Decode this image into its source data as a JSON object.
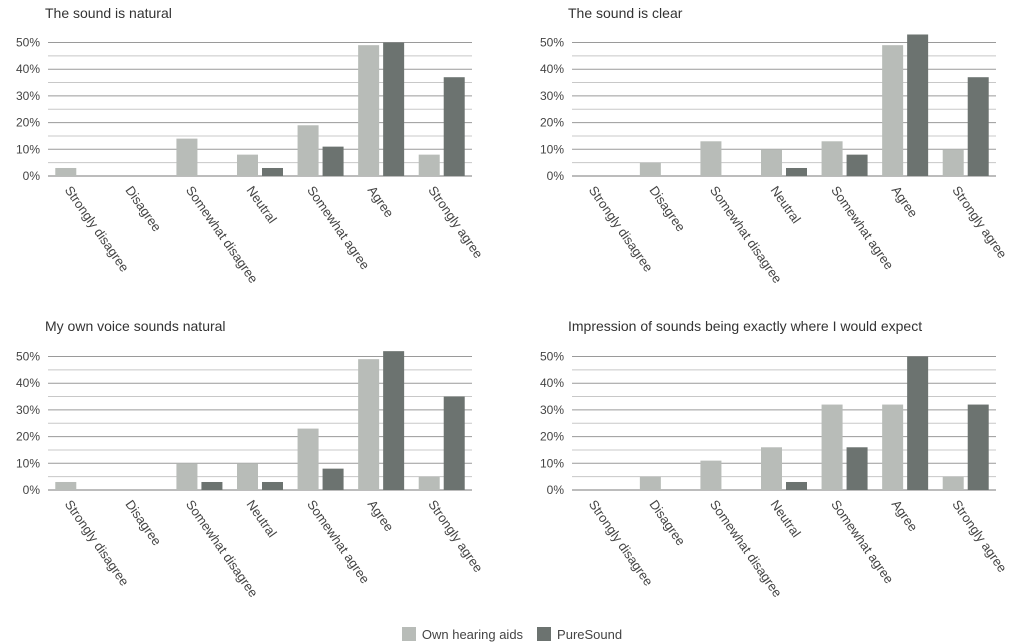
{
  "chart_data": [
    {
      "type": "bar",
      "title": "The sound is natural",
      "categories": [
        "Strongly disagree",
        "Disagree",
        "Somewhat disagree",
        "Neutral",
        "Somewhat agree",
        "Agree",
        "Strongly agree"
      ],
      "series": [
        {
          "name": "Own hearing aids",
          "values": [
            3,
            0,
            14,
            8,
            19,
            49,
            8
          ]
        },
        {
          "name": "PureSound",
          "values": [
            0,
            0,
            0,
            3,
            11,
            50,
            37
          ]
        }
      ],
      "yticks": [
        "0%",
        "10%",
        "20%",
        "30%",
        "40%",
        "50%"
      ],
      "ylim": [
        0,
        55
      ]
    },
    {
      "type": "bar",
      "title": "The sound is clear",
      "categories": [
        "Strongly disagree",
        "Disagree",
        "Somewhat disagree",
        "Neutral",
        "Somewhat agree",
        "Agree",
        "Strongly agree"
      ],
      "series": [
        {
          "name": "Own hearing aids",
          "values": [
            0,
            5,
            13,
            10,
            13,
            49,
            10
          ]
        },
        {
          "name": "PureSound",
          "values": [
            0,
            0,
            0,
            3,
            8,
            53,
            37
          ]
        }
      ],
      "yticks": [
        "0%",
        "10%",
        "20%",
        "30%",
        "40%",
        "50%"
      ],
      "ylim": [
        0,
        55
      ]
    },
    {
      "type": "bar",
      "title": "My own voice sounds natural",
      "categories": [
        "Strongly disagree",
        "Disagree",
        "Somewhat disagree",
        "Neutral",
        "Somewhat agree",
        "Agree",
        "Strongly agree"
      ],
      "series": [
        {
          "name": "Own hearing aids",
          "values": [
            3,
            0,
            10,
            10,
            23,
            49,
            5
          ]
        },
        {
          "name": "PureSound",
          "values": [
            0,
            0,
            3,
            3,
            8,
            52,
            35
          ]
        }
      ],
      "yticks": [
        "0%",
        "10%",
        "20%",
        "30%",
        "40%",
        "50%"
      ],
      "ylim": [
        0,
        55
      ]
    },
    {
      "type": "bar",
      "title": "Impression of sounds being exactly where I would expect",
      "categories": [
        "Strongly disagree",
        "Disagree",
        "Somewhat disagree",
        "Neutral",
        "Somewhat agree",
        "Agree",
        "Strongly agree"
      ],
      "series": [
        {
          "name": "Own hearing aids",
          "values": [
            0,
            5,
            11,
            16,
            32,
            32,
            5
          ]
        },
        {
          "name": "PureSound",
          "values": [
            0,
            0,
            0,
            3,
            16,
            50,
            32
          ]
        }
      ],
      "yticks": [
        "0%",
        "10%",
        "20%",
        "30%",
        "40%",
        "50%"
      ],
      "ylim": [
        0,
        55
      ]
    }
  ],
  "legend": {
    "position": "bottom-center",
    "items": [
      {
        "label": "Own hearing aids",
        "color": "#b8bcb8"
      },
      {
        "label": "PureSound",
        "color": "#6c7370"
      }
    ]
  },
  "colors": {
    "own_hearing_aids": "#b8bcb8",
    "puresound": "#6c7370",
    "grid": "#9a9a9a"
  }
}
